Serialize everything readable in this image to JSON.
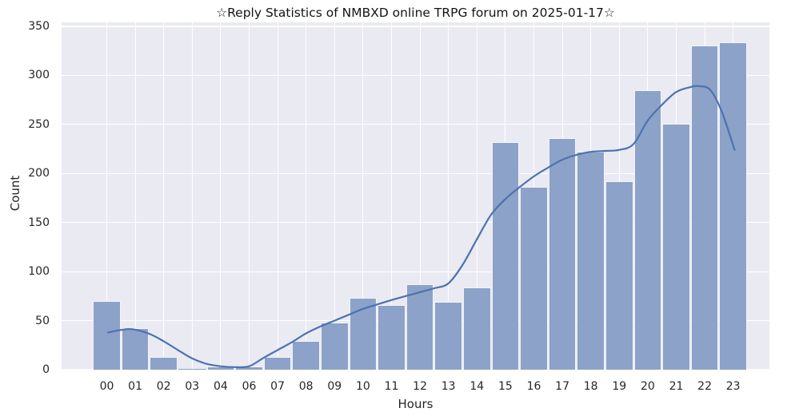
{
  "figure": {
    "title": "☆Reply Statistics of NMBXD online TRPG forum on 2025-01-17☆",
    "xlabel": "Hours",
    "ylabel": "Count"
  },
  "colors": {
    "figure_bg": "#ffffff",
    "plot_bg": "#eaeaf2",
    "grid": "#ffffff",
    "bar_fill": "#8da2c8",
    "bar_edge": "#ffffff",
    "kde_line": "#4c72b0",
    "tick_text": "#262626",
    "title_text": "#141414"
  },
  "chart_data": {
    "type": "bar",
    "subtype": "histogram-with-kde",
    "title": "☆Reply Statistics of NMBXD online TRPG forum on 2025-01-17☆",
    "xlabel": "Hours",
    "ylabel": "Count",
    "categories": [
      "00",
      "01",
      "02",
      "03",
      "04",
      "06",
      "07",
      "08",
      "09",
      "10",
      "11",
      "12",
      "13",
      "14",
      "15",
      "16",
      "17",
      "18",
      "19",
      "20",
      "21",
      "22",
      "23"
    ],
    "values": [
      70,
      42,
      13,
      1,
      3,
      3,
      13,
      29,
      48,
      73,
      66,
      87,
      69,
      84,
      232,
      186,
      236,
      222,
      192,
      285,
      251,
      330,
      334
    ],
    "yticks": [
      0,
      50,
      100,
      150,
      200,
      250,
      300,
      350
    ],
    "ylim": [
      0,
      354
    ],
    "grid": "on",
    "legend": "none",
    "note_missing_category": "05",
    "kde_points_index_value": [
      [
        0.05,
        38
      ],
      [
        0.5,
        40.5
      ],
      [
        0.9,
        41.3
      ],
      [
        1.5,
        36.5
      ],
      [
        2,
        29
      ],
      [
        2.5,
        20
      ],
      [
        3,
        11.5
      ],
      [
        3.5,
        6
      ],
      [
        4,
        3.5
      ],
      [
        4.5,
        2.6
      ],
      [
        5,
        3.5
      ],
      [
        5.5,
        12
      ],
      [
        6,
        20
      ],
      [
        6.5,
        28
      ],
      [
        7,
        37
      ],
      [
        7.5,
        44
      ],
      [
        8,
        50
      ],
      [
        8.5,
        56
      ],
      [
        9,
        62
      ],
      [
        9.5,
        66.5
      ],
      [
        10,
        71
      ],
      [
        10.5,
        75
      ],
      [
        11,
        79
      ],
      [
        11.5,
        83
      ],
      [
        12,
        88
      ],
      [
        12.5,
        107
      ],
      [
        13,
        133
      ],
      [
        13.5,
        158
      ],
      [
        14,
        174
      ],
      [
        14.5,
        186
      ],
      [
        15,
        197
      ],
      [
        15.5,
        206
      ],
      [
        16,
        214
      ],
      [
        16.5,
        219
      ],
      [
        17,
        222
      ],
      [
        17.5,
        223
      ],
      [
        18,
        224
      ],
      [
        18.5,
        230
      ],
      [
        19,
        254
      ],
      [
        19.5,
        270
      ],
      [
        20,
        283
      ],
      [
        20.5,
        288
      ],
      [
        20.8,
        289
      ],
      [
        21.2,
        285
      ],
      [
        21.6,
        263
      ],
      [
        22.05,
        224
      ]
    ]
  }
}
